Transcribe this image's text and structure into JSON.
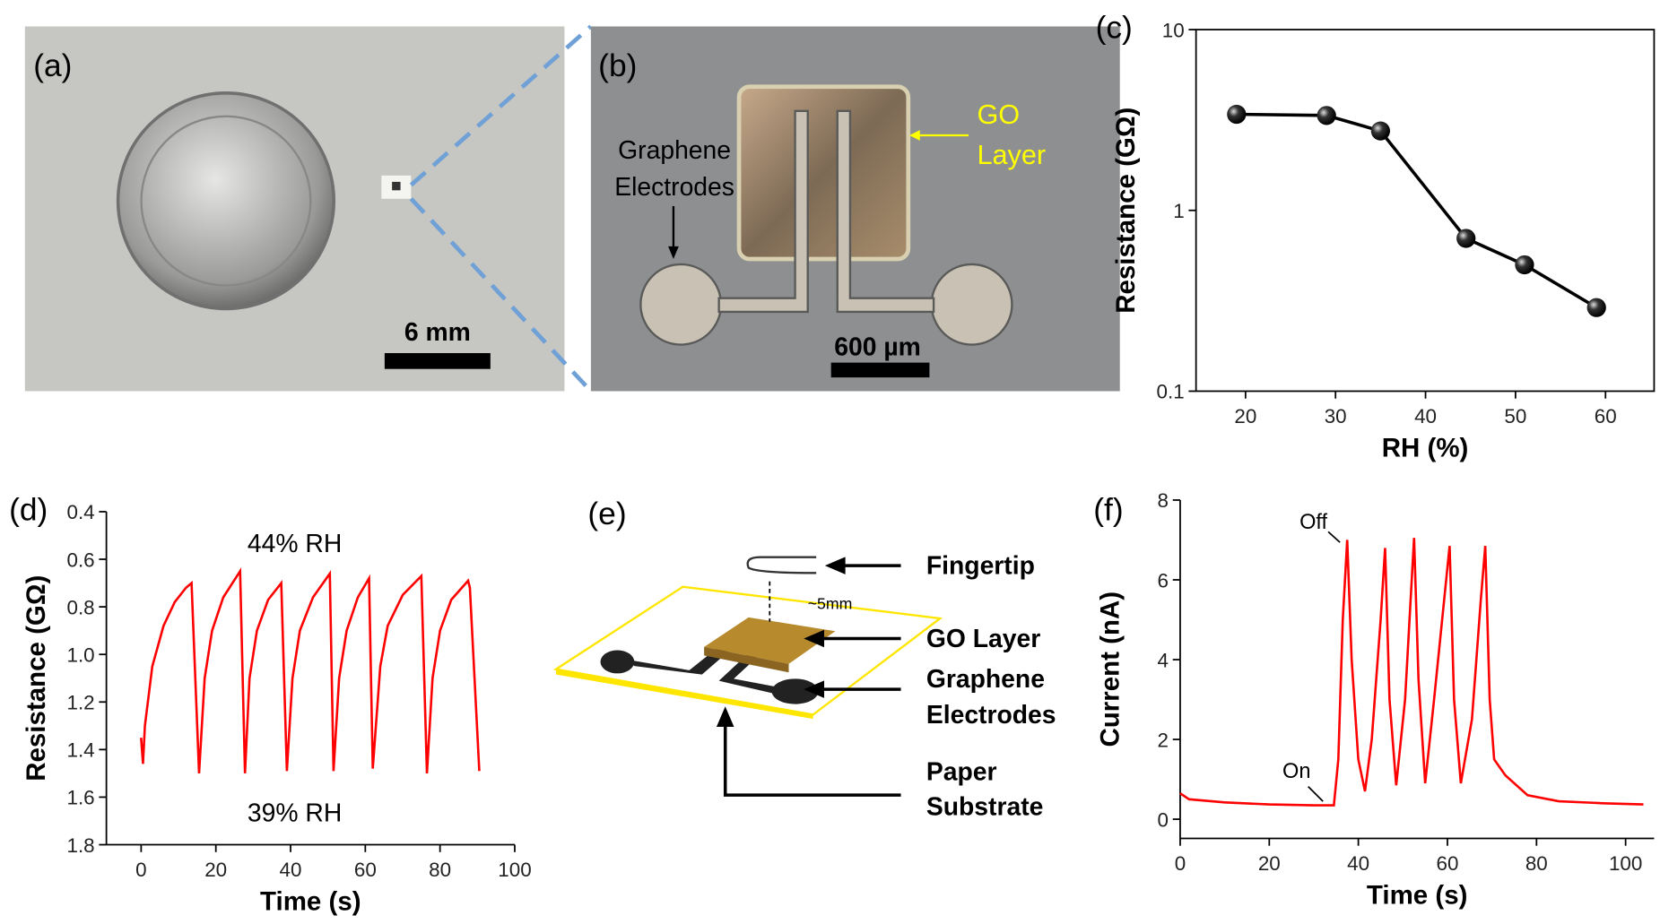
{
  "panels": {
    "a": {
      "label": "(a)",
      "scale_bar": "6 mm"
    },
    "b": {
      "label": "(b)",
      "go_layer": [
        "GO",
        "Layer"
      ],
      "electrodes": [
        "Graphene",
        "Electrodes"
      ],
      "scale_bar": "600 µm"
    },
    "e": {
      "label": "(e)",
      "fingertip": "Fingertip",
      "distance": "~5mm",
      "go_layer": "GO Layer",
      "electrodes": [
        "Graphene",
        "Electrodes"
      ],
      "substrate": [
        "Paper",
        "Substrate"
      ]
    }
  },
  "chart_data": [
    {
      "type": "line",
      "label": "(c)",
      "x_label": "RH (%)",
      "y_label": "Resistance (GΩ)",
      "log_y": true,
      "markers": true,
      "frame": "box",
      "x": [
        19,
        29,
        35,
        44.5,
        51,
        59
      ],
      "series": [
        {
          "color": "#000000",
          "values": [
            3.4,
            3.35,
            2.75,
            0.7,
            0.5,
            0.29
          ]
        }
      ],
      "xlim": [
        14.5,
        65.4
      ],
      "ylim": [
        0.1,
        10
      ],
      "xticks": [
        20,
        30,
        40,
        50,
        60
      ],
      "yticks": [
        0.1,
        1,
        10
      ]
    },
    {
      "type": "line",
      "label": "(d)",
      "x_label": "Time (s)",
      "y_label": "Resistance (GΩ)",
      "invert_y": true,
      "frame": "axes",
      "annotations": [
        "44% RH",
        "39% RH"
      ],
      "x": [
        0,
        0.5,
        1,
        3,
        6,
        9,
        12,
        13.5,
        15.5,
        17,
        19,
        22,
        26.5,
        27.8,
        29,
        31,
        34,
        37.5,
        39,
        40.5,
        42.5,
        46,
        50.5,
        51.5,
        53,
        55,
        58,
        61,
        62,
        64,
        66,
        70,
        75,
        76.5,
        78,
        80,
        83,
        87.5,
        88,
        90.5
      ],
      "series": [
        {
          "color": "#ff0000",
          "values": [
            1.35,
            1.46,
            1.3,
            1.05,
            0.88,
            0.78,
            0.72,
            0.7,
            1.5,
            1.1,
            0.9,
            0.76,
            0.65,
            1.5,
            1.1,
            0.9,
            0.77,
            0.7,
            1.49,
            1.1,
            0.9,
            0.76,
            0.66,
            1.49,
            1.1,
            0.9,
            0.76,
            0.68,
            1.48,
            1.05,
            0.88,
            0.75,
            0.67,
            1.5,
            1.1,
            0.9,
            0.77,
            0.69,
            0.72,
            1.49
          ]
        }
      ],
      "xlim": [
        -9.3,
        100
      ],
      "ylim": [
        0.4,
        1.8
      ],
      "xticks": [
        0,
        20,
        40,
        60,
        80,
        100
      ],
      "yticks": [
        0.4,
        0.6,
        0.8,
        {
          "value": 1,
          "label": "1.0"
        },
        1.2,
        1.4,
        1.6,
        1.8
      ]
    },
    {
      "type": "line",
      "label": "(f)",
      "x_label": "Time (s)",
      "y_label": "Current (nA)",
      "frame": "axes",
      "annotations": [
        "Off",
        "On"
      ],
      "x": [
        0,
        2,
        10,
        20,
        30,
        34.5,
        35.5,
        36.5,
        37.5,
        38.5,
        40,
        41.5,
        43,
        45,
        46,
        47,
        48.5,
        50.5,
        52.5,
        53.5,
        55,
        57,
        60.5,
        61.5,
        63,
        65.5,
        67.5,
        68.5,
        69.5,
        70.5,
        73,
        78,
        85,
        95,
        104
      ],
      "series": [
        {
          "color": "#ff0000",
          "values": [
            0.65,
            0.5,
            0.42,
            0.37,
            0.35,
            0.35,
            1.5,
            5,
            7,
            4,
            1.5,
            0.7,
            2,
            5,
            6.8,
            3,
            0.85,
            3,
            7.05,
            3.5,
            0.9,
            3,
            6.85,
            3,
            0.9,
            2.5,
            5.5,
            6.85,
            3,
            1.5,
            1.1,
            0.6,
            0.45,
            0.4,
            0.37
          ]
        }
      ],
      "xlim": [
        0,
        106.4
      ],
      "ylim": [
        -0.48,
        8
      ],
      "xticks": [
        0,
        20,
        40,
        60,
        80,
        100
      ],
      "yticks": [
        0,
        2,
        4,
        6,
        8
      ]
    }
  ]
}
